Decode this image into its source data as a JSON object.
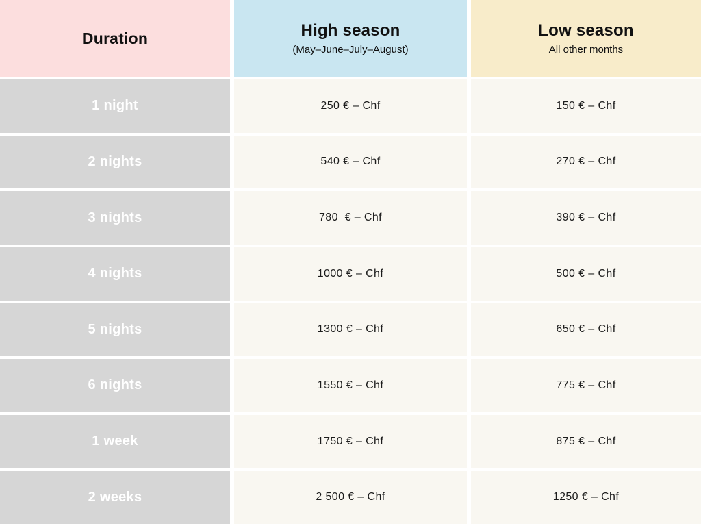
{
  "table": {
    "header": {
      "duration_label": "Duration",
      "high_title": "High season",
      "high_subtitle": "(May–June–July–August)",
      "low_title": "Low season",
      "low_subtitle": "All other months"
    },
    "rows": [
      {
        "duration": "1 night",
        "high": "250 € – Chf",
        "low": "150 € – Chf"
      },
      {
        "duration": "2 nights",
        "high": "540 € – Chf",
        "low": "270 € – Chf"
      },
      {
        "duration": "3 nights",
        "high": "780  € – Chf",
        "low": "390 € – Chf"
      },
      {
        "duration": "4 nights",
        "high": "1000 € – Chf",
        "low": "500 € – Chf"
      },
      {
        "duration": "5 nights",
        "high": "1300 € – Chf",
        "low": "650 € – Chf"
      },
      {
        "duration": "6 nights",
        "high": "1550 € – Chf",
        "low": "775 € – Chf"
      },
      {
        "duration": "1 week",
        "high": "1750 € – Chf",
        "low": "875 € – Chf"
      },
      {
        "duration": "2 weeks",
        "high": "2 500 € – Chf",
        "low": "1250 € – Chf"
      }
    ]
  },
  "colors": {
    "header_duration_bg": "#fcdede",
    "header_high_bg": "#c9e6f1",
    "header_low_bg": "#f8ecca",
    "duration_cell_bg": "#d6d6d6",
    "price_cell_bg": "#f9f7f1",
    "duration_text": "#ffffff",
    "price_text": "#1c1c1c",
    "gap": "#ffffff"
  },
  "chart_data": {
    "type": "table",
    "title": "Accommodation pricing by duration and season",
    "columns": [
      "Duration",
      "High season (May–June–July–August)",
      "Low season (All other months)"
    ],
    "rows": [
      [
        "1 night",
        "250 € – Chf",
        "150 € – Chf"
      ],
      [
        "2 nights",
        "540 € – Chf",
        "270 € – Chf"
      ],
      [
        "3 nights",
        "780 € – Chf",
        "390 € – Chf"
      ],
      [
        "4 nights",
        "1000 € – Chf",
        "500 € – Chf"
      ],
      [
        "5 nights",
        "1300 € – Chf",
        "650 € – Chf"
      ],
      [
        "6 nights",
        "1550 € – Chf",
        "775 € – Chf"
      ],
      [
        "1 week",
        "1750 € – Chf",
        "875 € – Chf"
      ],
      [
        "2 weeks",
        "2 500 € – Chf",
        "1250 € – Chf"
      ]
    ],
    "high_season_values_eur": [
      250,
      540,
      780,
      1000,
      1300,
      1550,
      1750,
      2500
    ],
    "low_season_values_eur": [
      150,
      270,
      390,
      500,
      650,
      775,
      875,
      1250
    ],
    "currency": "EUR – CHF"
  }
}
